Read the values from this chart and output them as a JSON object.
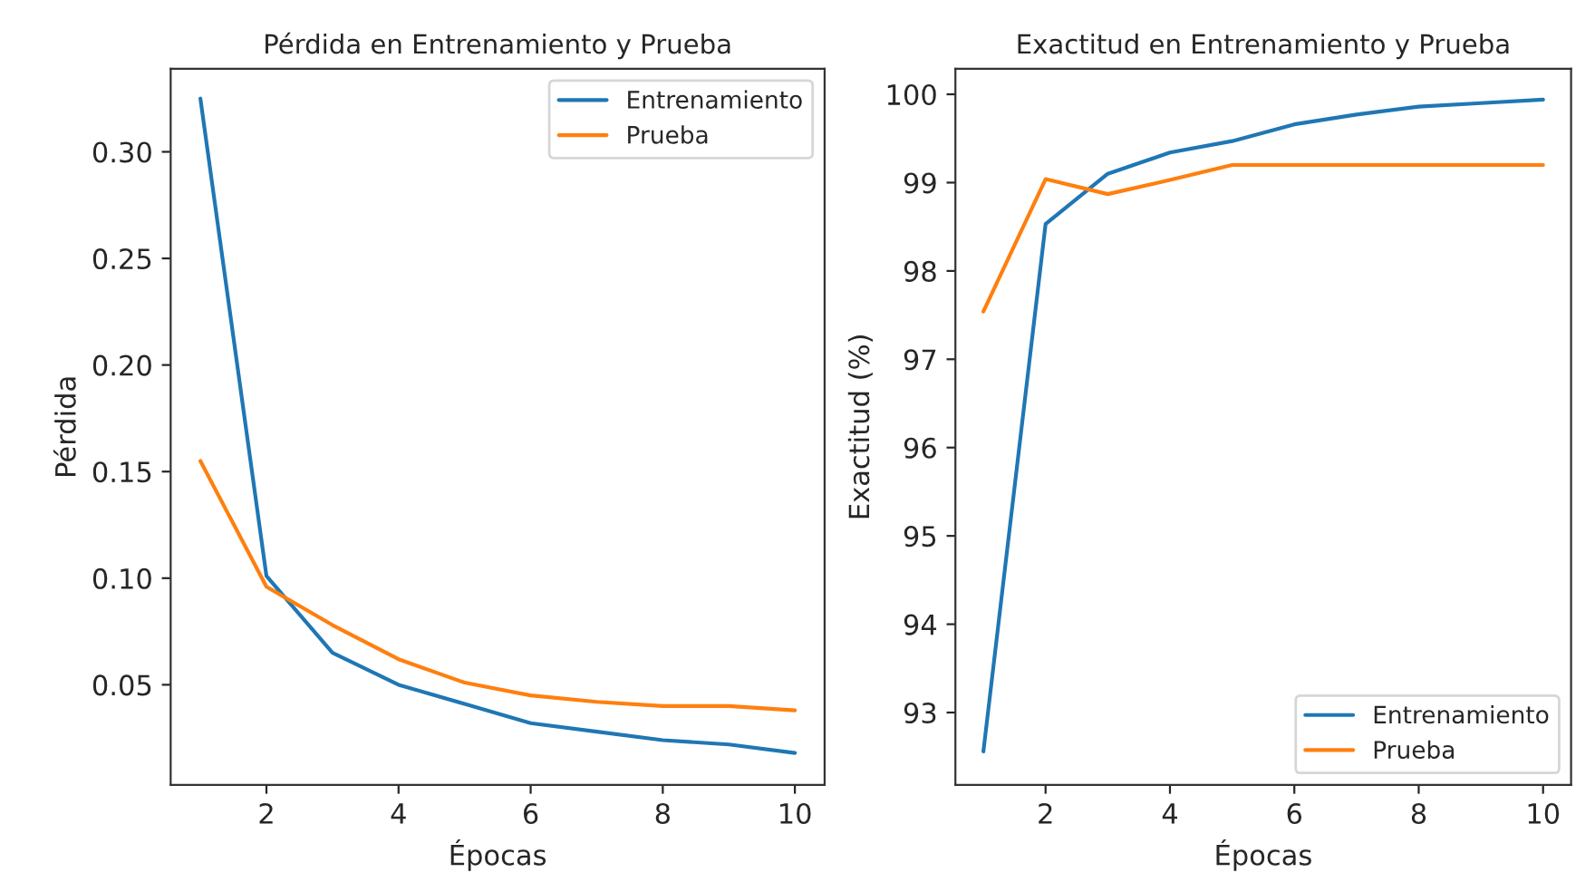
{
  "chart_data": [
    {
      "type": "line",
      "title": "Pérdida en Entrenamiento y Prueba",
      "xlabel": "Épocas",
      "ylabel": "Pérdida",
      "x": [
        1,
        2,
        3,
        4,
        5,
        6,
        7,
        8,
        9,
        10
      ],
      "series": [
        {
          "name": "Entrenamiento",
          "color": "#1f77b4",
          "values": [
            0.325,
            0.101,
            0.065,
            0.05,
            0.041,
            0.032,
            0.028,
            0.024,
            0.022,
            0.018
          ]
        },
        {
          "name": "Prueba",
          "color": "#ff7f0e",
          "values": [
            0.155,
            0.096,
            0.078,
            0.062,
            0.051,
            0.045,
            0.042,
            0.04,
            0.04,
            0.038
          ]
        }
      ],
      "xlim": [
        0.55,
        10.45
      ],
      "xticks": [
        2,
        4,
        6,
        8,
        10
      ],
      "ylim": [
        0.003,
        0.339
      ],
      "yticks": [
        0.05,
        {
          "value": 0.1,
          "label": "0.10"
        },
        0.15,
        {
          "value": 0.2,
          "label": "0.20"
        },
        0.25,
        {
          "value": 0.3,
          "label": "0.30"
        }
      ],
      "grid": false,
      "legend": "top right"
    },
    {
      "type": "line",
      "title": "Exactitud en Entrenamiento y Prueba",
      "xlabel": "Épocas",
      "ylabel": "Exactitud (%)",
      "x": [
        1,
        2,
        3,
        4,
        5,
        6,
        7,
        8,
        9,
        10
      ],
      "series": [
        {
          "name": "Entrenamiento",
          "color": "#1f77b4",
          "values": [
            92.56,
            98.53,
            99.1,
            99.34,
            99.47,
            99.66,
            99.77,
            99.86,
            99.9,
            99.94
          ]
        },
        {
          "name": "Prueba",
          "color": "#ff7f0e",
          "values": [
            97.54,
            99.04,
            98.87,
            99.03,
            99.2,
            99.2,
            99.2,
            99.2,
            99.2,
            99.2
          ]
        }
      ],
      "xlim": [
        0.55,
        10.45
      ],
      "xticks": [
        2,
        4,
        6,
        8,
        10
      ],
      "ylim": [
        92.18,
        100.29
      ],
      "yticks": [
        93,
        94,
        95,
        96,
        97,
        98,
        99,
        100
      ],
      "grid": false,
      "legend": "bottom right"
    }
  ]
}
